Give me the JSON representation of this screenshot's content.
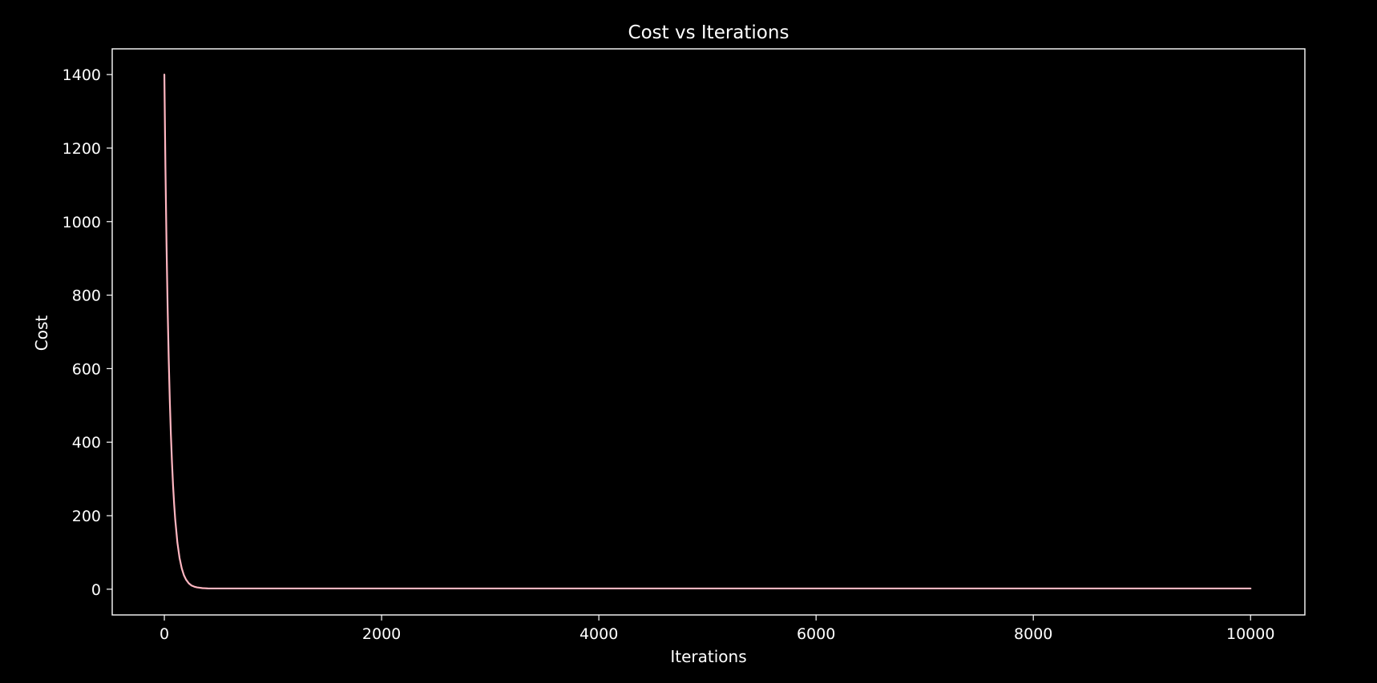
{
  "chart_data": {
    "type": "line",
    "title": "Cost vs Iterations",
    "xlabel": "Iterations",
    "ylabel": "Cost",
    "xlim": [
      -480,
      10500
    ],
    "ylim": [
      -70,
      1470
    ],
    "x_ticks": [
      0,
      2000,
      4000,
      6000,
      8000,
      10000
    ],
    "y_ticks": [
      0,
      200,
      400,
      600,
      800,
      1000,
      1200,
      1400
    ],
    "grid": false,
    "legend": "none",
    "colors": {
      "background": "#000000",
      "axes": "#ffffff",
      "text": "#ffffff",
      "line": "#ffb6c1"
    },
    "series": [
      {
        "x": [
          0,
          10,
          20,
          30,
          40,
          50,
          60,
          70,
          80,
          90,
          100,
          120,
          140,
          160,
          180,
          200,
          225,
          250,
          275,
          300,
          350,
          400,
          450,
          500,
          600,
          800,
          1000,
          1500,
          2000,
          3000,
          4000,
          5000,
          6000,
          7000,
          8000,
          9000,
          10000
        ],
        "values": [
          1400,
          1146,
          939,
          769,
          629,
          515,
          422,
          346,
          283,
          232,
          190,
          127,
          85,
          57,
          38,
          26,
          16,
          10,
          7,
          5,
          3,
          2.2,
          2,
          2,
          2,
          2,
          2,
          2,
          2,
          2,
          2,
          2,
          2,
          2,
          2,
          2,
          2
        ]
      }
    ]
  }
}
